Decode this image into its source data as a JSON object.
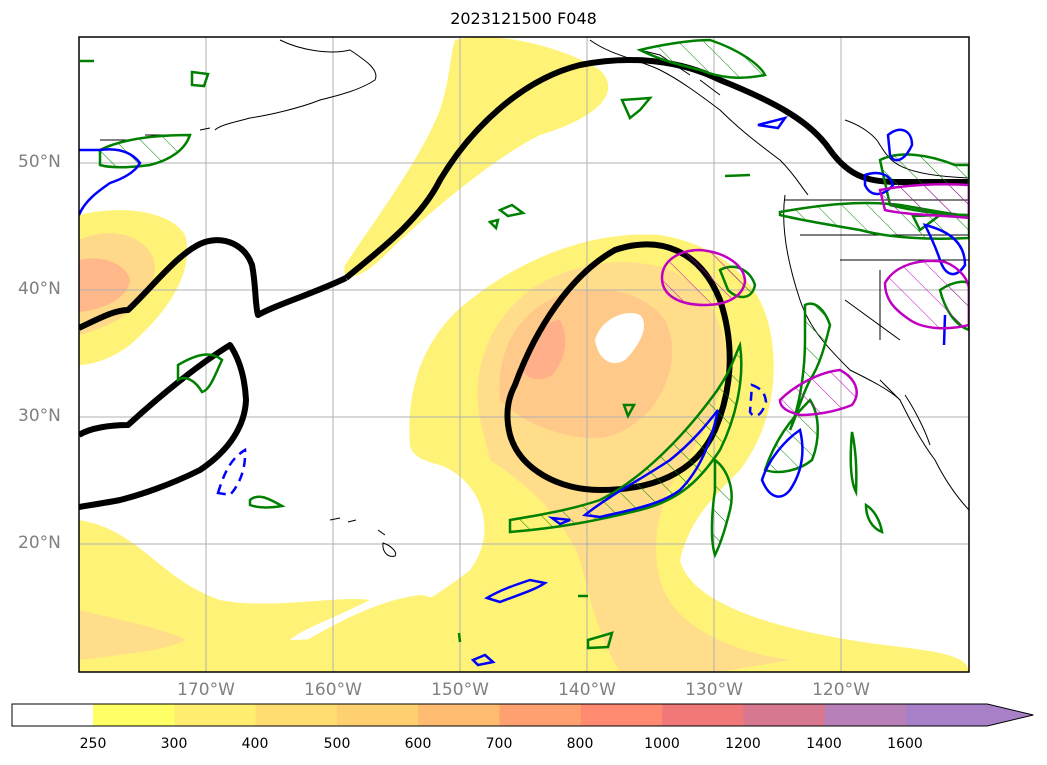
{
  "title": "2023121500 F048",
  "lat_labels": [
    "50°N",
    "40°N",
    "30°N",
    "20°N"
  ],
  "lon_labels": [
    "170°W",
    "160°W",
    "150°W",
    "140°W",
    "130°W",
    "120°W"
  ],
  "colorbar": {
    "ticks": [
      "250",
      "300",
      "400",
      "500",
      "600",
      "700",
      "800",
      "1000",
      "1200",
      "1400",
      "1600"
    ],
    "colors": [
      "#ffff66",
      "#ffee70",
      "#ffdd70",
      "#ffd070",
      "#ffbb70",
      "#ffa070",
      "#ff8a70",
      "#f07878",
      "#d87890",
      "#b880b8",
      "#a880c8"
    ],
    "extend": "max"
  },
  "contour_colors": {
    "thick_line": "#000000",
    "green": "#008000",
    "blue": "#0000ff",
    "magenta": "#c000c0"
  },
  "map": {
    "projection": "lat-lon",
    "lon_range": [
      "180°W",
      "110°W"
    ],
    "lat_range": [
      "10°N",
      "60°N"
    ],
    "gridlines": true
  }
}
